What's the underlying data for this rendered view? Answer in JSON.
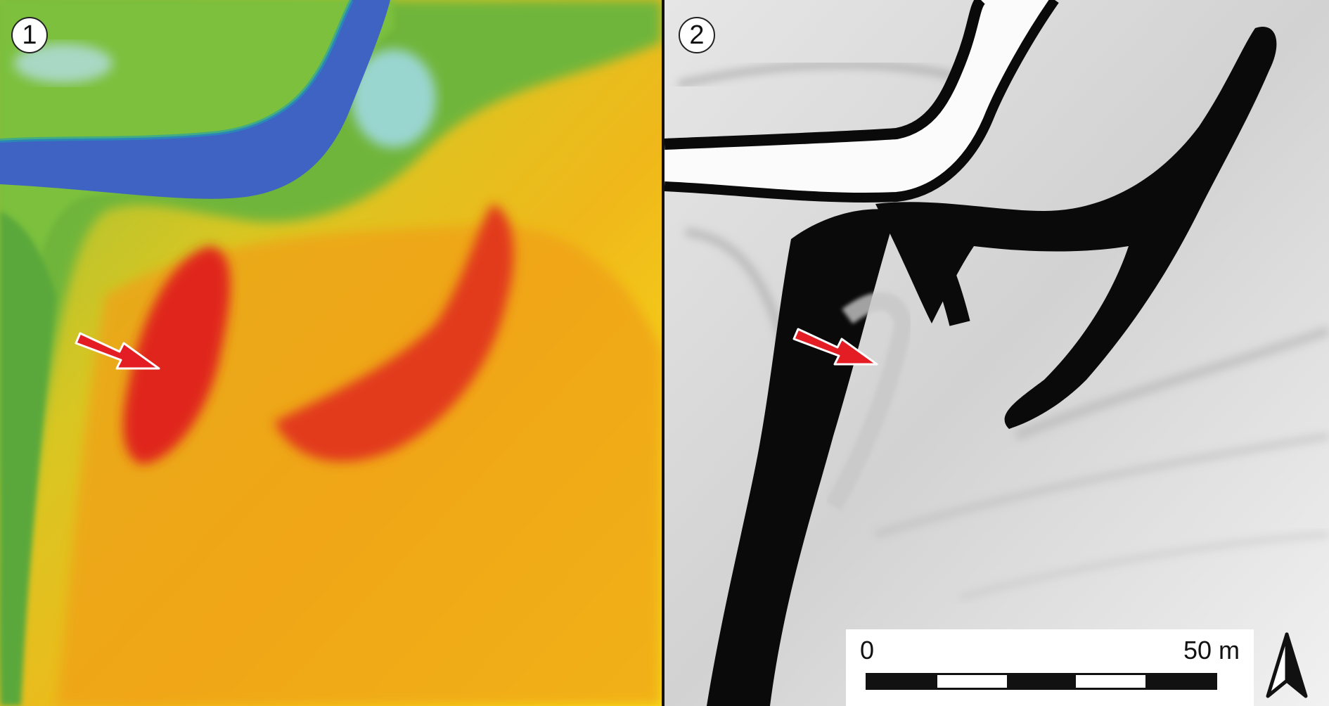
{
  "panels": [
    {
      "number": "1",
      "type": "elevation-color-map"
    },
    {
      "number": "2",
      "type": "grayscale-slope-map"
    }
  ],
  "scale_bar": {
    "start_label": "0",
    "end_label": "50 m",
    "segments": [
      "dark",
      "light",
      "dark",
      "light",
      "dark"
    ]
  },
  "north_arrow": {
    "icon": "north-arrow-icon"
  },
  "marker": {
    "icon": "red-arrow-icon",
    "color": "#e31d23"
  },
  "colors": {
    "water": "#3f63c2",
    "low": "#5aab3e",
    "mid": "#f3d21a",
    "high": "#e43a1d",
    "dark": "#0a0a0a",
    "light": "#f2f2f2"
  }
}
